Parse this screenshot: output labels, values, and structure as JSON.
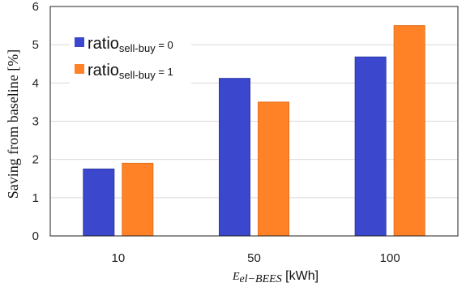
{
  "chart_data": {
    "type": "bar",
    "categories": [
      "10",
      "50",
      "100"
    ],
    "series": [
      {
        "name_main": "ratio",
        "name_sub": "sell-buy",
        "name_suffix": " = 0",
        "values": [
          1.75,
          4.12,
          4.68
        ],
        "color": "#3b47cc"
      },
      {
        "name_main": "ratio",
        "name_sub": "sell-buy",
        "name_suffix": " = 1",
        "values": [
          1.9,
          3.5,
          5.5
        ],
        "color": "#ff8227"
      }
    ],
    "ylabel": "Saving from baseline [%]",
    "xlabel_symbol": "E",
    "xlabel_subscript": "el−BEES",
    "xlabel_unit": " [kWh]",
    "ylim": [
      0,
      6
    ],
    "yticks": [
      0,
      1,
      2,
      3,
      4,
      5,
      6
    ],
    "grid": "horizontal",
    "legend_position": "top-left"
  }
}
